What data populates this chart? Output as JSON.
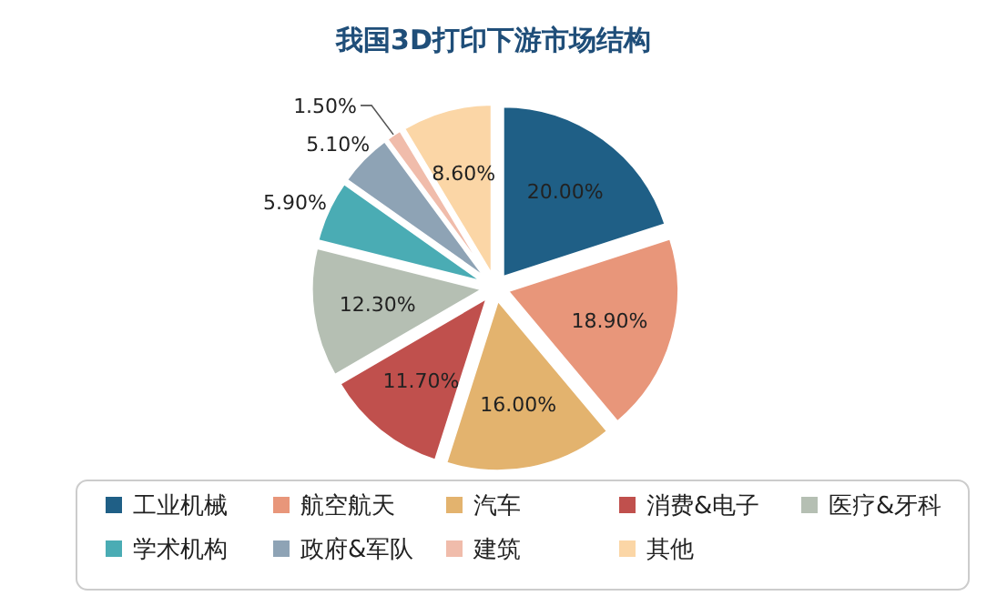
{
  "chart_data": {
    "type": "pie",
    "title": "我国3D打印下游市场结构",
    "categories": [
      "工业机械",
      "航空航天",
      "汽车",
      "消费&电子",
      "医疗&牙科",
      "学术机构",
      "政府&军队",
      "建筑",
      "其他"
    ],
    "values": [
      20.0,
      18.9,
      16.0,
      11.7,
      12.3,
      5.9,
      5.1,
      1.5,
      8.6
    ],
    "value_labels": [
      "20.00%",
      "18.90%",
      "16.00%",
      "11.70%",
      "12.30%",
      "5.90%",
      "5.10%",
      "1.50%",
      "8.60%"
    ],
    "colors": [
      "#1f5f86",
      "#e8967a",
      "#e3b36e",
      "#c0504d",
      "#b5bfb3",
      "#4aacb4",
      "#8ea3b5",
      "#f0bcab",
      "#fbd6a6"
    ],
    "legend": "bottom"
  }
}
